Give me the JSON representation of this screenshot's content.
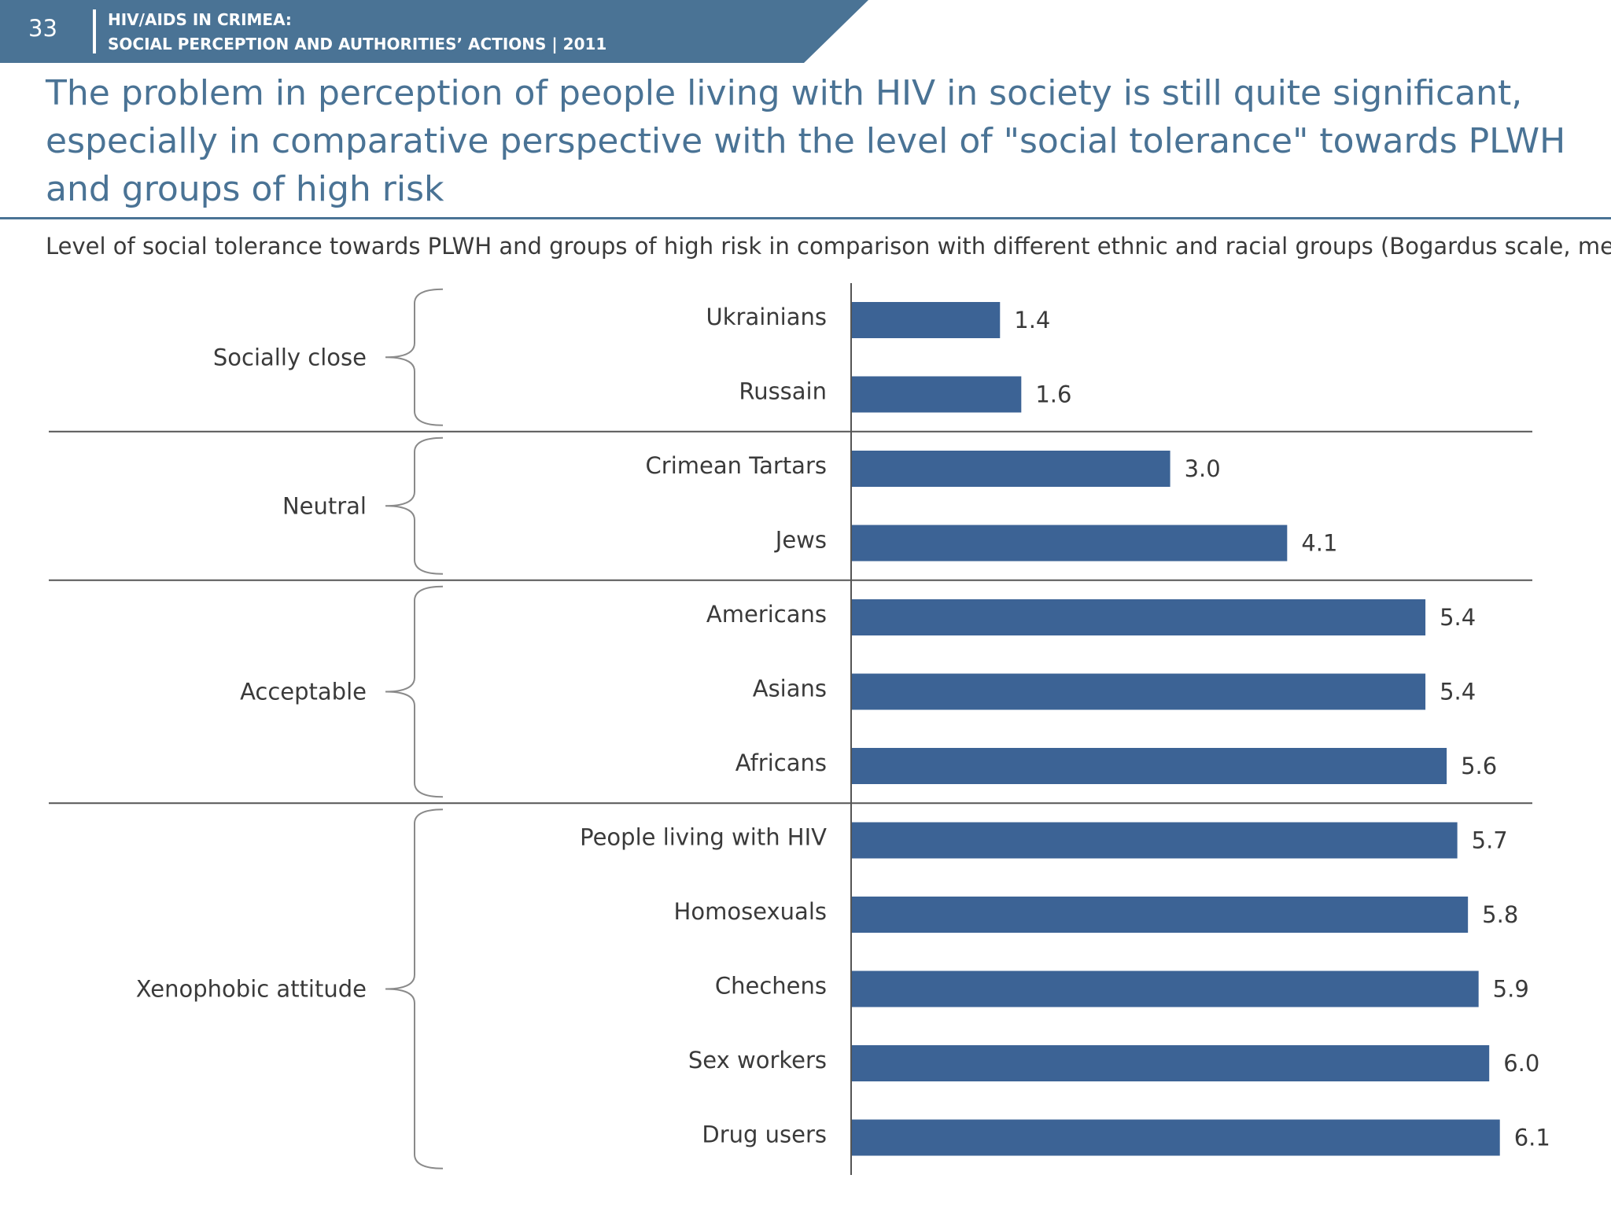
{
  "header": {
    "slide_number": "33",
    "line1": "HIV/AIDS IN CRIMEA:",
    "line2": "SOCIAL PERCEPTION AND AUTHORITIES’ ACTIONS  |  2011"
  },
  "headline": "The problem in perception of people living with HIV in society is still quite significant, especially in comparative perspective with the level of \"social tolerance\" towards PLWH and groups of high risk",
  "colors": {
    "accent": "#4a7395",
    "bar": "#3c6395",
    "text": "#3a3a3a"
  },
  "chart_data": {
    "type": "bar",
    "orientation": "horizontal",
    "title": "Level of social tolerance towards PLWH and groups of high risk in comparison with different ethnic and racial groups (Bogardus scale, means)",
    "xlabel": "",
    "ylabel": "",
    "xlim": [
      0,
      7
    ],
    "grid": false,
    "legend": "none",
    "categories": [
      "Ukrainians",
      "Russain",
      "Crimean Tartars",
      "Jews",
      "Americans",
      "Asians",
      "Africans",
      "People living with HIV",
      "Homosexuals",
      "Chechens",
      "Sex workers",
      "Drug users"
    ],
    "values": [
      1.4,
      1.6,
      3.0,
      4.1,
      5.4,
      5.4,
      5.6,
      5.7,
      5.8,
      5.9,
      6.0,
      6.1
    ],
    "value_labels": [
      "1.4",
      "1.6",
      "3.0",
      "4.1",
      "5.4",
      "5.4",
      "5.6",
      "5.7",
      "5.8",
      "5.9",
      "6.0",
      "6.1"
    ],
    "groups": [
      {
        "name": "Socially close",
        "start": 0,
        "end": 1
      },
      {
        "name": "Neutral",
        "start": 2,
        "end": 3
      },
      {
        "name": "Acceptable",
        "start": 4,
        "end": 6
      },
      {
        "name": "Xenophobic attitude",
        "start": 7,
        "end": 11
      }
    ]
  }
}
